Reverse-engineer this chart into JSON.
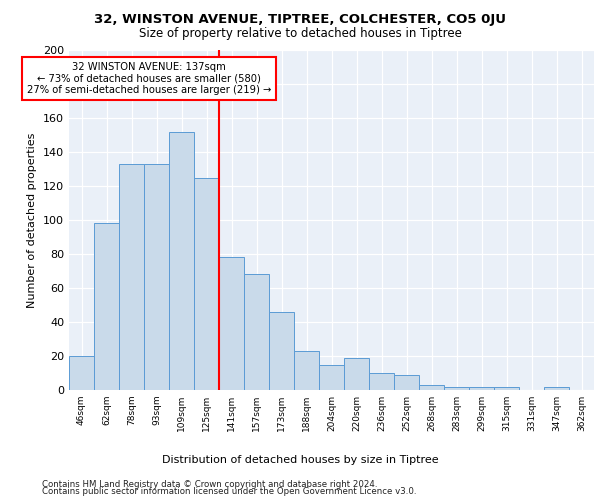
{
  "title1": "32, WINSTON AVENUE, TIPTREE, COLCHESTER, CO5 0JU",
  "title2": "Size of property relative to detached houses in Tiptree",
  "xlabel": "Distribution of detached houses by size in Tiptree",
  "ylabel": "Number of detached properties",
  "categories": [
    "46sqm",
    "62sqm",
    "78sqm",
    "93sqm",
    "109sqm",
    "125sqm",
    "141sqm",
    "157sqm",
    "173sqm",
    "188sqm",
    "204sqm",
    "220sqm",
    "236sqm",
    "252sqm",
    "268sqm",
    "283sqm",
    "299sqm",
    "315sqm",
    "331sqm",
    "347sqm",
    "362sqm"
  ],
  "values": [
    20,
    98,
    133,
    133,
    152,
    125,
    78,
    68,
    46,
    23,
    15,
    19,
    10,
    9,
    3,
    2,
    2,
    2,
    0,
    2,
    0
  ],
  "bar_color": "#c9daea",
  "bar_edge_color": "#5b9bd5",
  "red_line_x": 6,
  "annotation_text": "32 WINSTON AVENUE: 137sqm\n← 73% of detached houses are smaller (580)\n27% of semi-detached houses are larger (219) →",
  "annotation_box_color": "white",
  "annotation_box_edge": "red",
  "red_line_color": "red",
  "background_color": "#eaf0f8",
  "grid_color": "white",
  "ylim": [
    0,
    200
  ],
  "yticks": [
    0,
    20,
    40,
    60,
    80,
    100,
    120,
    140,
    160,
    180,
    200
  ],
  "footer1": "Contains HM Land Registry data © Crown copyright and database right 2024.",
  "footer2": "Contains public sector information licensed under the Open Government Licence v3.0."
}
